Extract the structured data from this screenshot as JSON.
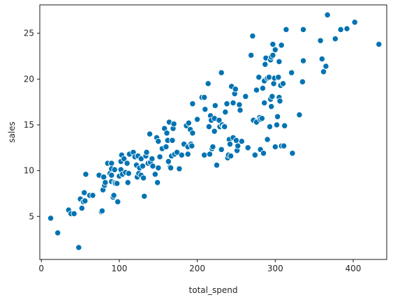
{
  "chart_data": {
    "type": "scatter",
    "title": "",
    "xlabel": "total_spend",
    "ylabel": "sales",
    "xlim": [
      -2,
      443
    ],
    "ylim": [
      0.3,
      28.1
    ],
    "xticks": [
      0,
      100,
      200,
      300,
      400
    ],
    "yticks": [
      5,
      10,
      15,
      20,
      25
    ],
    "grid": false,
    "marker_color": "#0173b2",
    "marker_edge_color": "#ffffff",
    "points": [
      [
        12,
        4.8
      ],
      [
        21,
        3.2
      ],
      [
        35,
        5.7
      ],
      [
        38,
        5.3
      ],
      [
        42,
        5.3
      ],
      [
        48,
        1.6
      ],
      [
        50,
        6.9
      ],
      [
        52,
        5.9
      ],
      [
        54,
        6.6
      ],
      [
        55,
        7.6
      ],
      [
        56,
        6.7
      ],
      [
        57,
        9.6
      ],
      [
        62,
        7.3
      ],
      [
        66,
        7.3
      ],
      [
        74,
        9.5
      ],
      [
        77,
        5.5
      ],
      [
        78,
        5.6
      ],
      [
        79,
        7.9
      ],
      [
        80,
        9.3
      ],
      [
        81,
        8.4
      ],
      [
        82,
        8.7
      ],
      [
        85,
        10.8
      ],
      [
        88,
        9.7
      ],
      [
        90,
        10.8
      ],
      [
        90,
        9.5
      ],
      [
        90,
        10.2
      ],
      [
        90,
        8.8
      ],
      [
        92,
        7.1
      ],
      [
        93,
        7.3
      ],
      [
        94,
        10.1
      ],
      [
        94,
        8.7
      ],
      [
        95,
        8.6
      ],
      [
        97,
        8.6
      ],
      [
        98,
        6.6
      ],
      [
        100,
        9.4
      ],
      [
        102,
        11.0
      ],
      [
        102,
        10.1
      ],
      [
        103,
        11.7
      ],
      [
        104,
        9.6
      ],
      [
        106,
        11.3
      ],
      [
        108,
        9.8
      ],
      [
        110,
        10.8
      ],
      [
        111,
        8.7
      ],
      [
        112,
        9.7
      ],
      [
        113,
        11.8
      ],
      [
        118,
        12.0
      ],
      [
        120,
        11.5
      ],
      [
        122,
        10.6
      ],
      [
        123,
        9.3
      ],
      [
        124,
        11.6
      ],
      [
        125,
        9.7
      ],
      [
        126,
        10.3
      ],
      [
        128,
        11.3
      ],
      [
        128,
        9.5
      ],
      [
        130,
        10.5
      ],
      [
        131,
        9.2
      ],
      [
        132,
        7.2
      ],
      [
        134,
        11.6
      ],
      [
        135,
        12.0
      ],
      [
        137,
        10.8
      ],
      [
        139,
        14.0
      ],
      [
        140,
        10.9
      ],
      [
        142,
        11.3
      ],
      [
        143,
        10.5
      ],
      [
        146,
        9.6
      ],
      [
        148,
        13.6
      ],
      [
        149,
        8.7
      ],
      [
        150,
        10.3
      ],
      [
        150,
        13.2
      ],
      [
        152,
        11.5
      ],
      [
        155,
        12.4
      ],
      [
        158,
        14.6
      ],
      [
        160,
        12.6
      ],
      [
        161,
        14.1
      ],
      [
        162,
        13.3
      ],
      [
        163,
        11.0
      ],
      [
        164,
        15.3
      ],
      [
        165,
        10.4
      ],
      [
        166,
        10.3
      ],
      [
        167,
        11.6
      ],
      [
        168,
        13.3
      ],
      [
        169,
        14.6
      ],
      [
        170,
        15.1
      ],
      [
        171,
        11.8
      ],
      [
        174,
        12.0
      ],
      [
        177,
        10.2
      ],
      [
        180,
        11.7
      ],
      [
        183,
        12.9
      ],
      [
        186,
        14.9
      ],
      [
        188,
        12.6
      ],
      [
        188,
        11.8
      ],
      [
        189,
        15.2
      ],
      [
        191,
        14.5
      ],
      [
        192,
        12.9
      ],
      [
        193,
        12.7
      ],
      [
        194,
        14.1
      ],
      [
        194,
        17.3
      ],
      [
        200,
        15.6
      ],
      [
        206,
        18.0
      ],
      [
        209,
        11.7
      ],
      [
        209,
        18.0
      ],
      [
        210,
        16.7
      ],
      [
        214,
        19.5
      ],
      [
        215,
        14.8
      ],
      [
        216,
        11.8
      ],
      [
        217,
        16.0
      ],
      [
        218,
        15.5
      ],
      [
        219,
        12.4
      ],
      [
        220,
        12.6
      ],
      [
        222,
        14.3
      ],
      [
        222,
        15.7
      ],
      [
        223,
        17.1
      ],
      [
        225,
        10.6
      ],
      [
        228,
        15.5
      ],
      [
        229,
        14.8
      ],
      [
        231,
        20.7
      ],
      [
        231,
        12.3
      ],
      [
        232,
        15.0
      ],
      [
        234,
        14.8
      ],
      [
        235,
        14.8
      ],
      [
        236,
        16.4
      ],
      [
        238,
        17.3
      ],
      [
        239,
        11.4
      ],
      [
        240,
        11.7
      ],
      [
        241,
        13.4
      ],
      [
        242,
        12.9
      ],
      [
        243,
        11.6
      ],
      [
        244,
        19.2
      ],
      [
        246,
        17.4
      ],
      [
        246,
        13.6
      ],
      [
        248,
        18.4
      ],
      [
        249,
        18.9
      ],
      [
        250,
        13.3
      ],
      [
        251,
        12.2
      ],
      [
        252,
        12.7
      ],
      [
        254,
        17.2
      ],
      [
        255,
        16.6
      ],
      [
        257,
        13.2
      ],
      [
        262,
        18.1
      ],
      [
        265,
        12.5
      ],
      [
        269,
        22.6
      ],
      [
        271,
        24.7
      ],
      [
        272,
        15.5
      ],
      [
        274,
        11.7
      ],
      [
        276,
        15.3
      ],
      [
        276,
        18.8
      ],
      [
        279,
        20.2
      ],
      [
        280,
        15.8
      ],
      [
        281,
        12.3
      ],
      [
        281,
        15.6
      ],
      [
        283,
        15.7
      ],
      [
        284,
        19.0
      ],
      [
        285,
        11.9
      ],
      [
        286,
        17.4
      ],
      [
        286,
        19.8
      ],
      [
        287,
        21.6
      ],
      [
        288,
        22.3
      ],
      [
        290,
        13.4
      ],
      [
        290,
        20.1
      ],
      [
        292,
        20.2
      ],
      [
        293,
        14.8
      ],
      [
        294,
        17.8
      ],
      [
        294,
        22.1
      ],
      [
        295,
        17.0
      ],
      [
        295,
        22.4
      ],
      [
        296,
        18.1
      ],
      [
        297,
        22.6
      ],
      [
        297,
        23.8
      ],
      [
        298,
        19.5
      ],
      [
        299,
        20.1
      ],
      [
        300,
        12.6
      ],
      [
        300,
        23.2
      ],
      [
        302,
        15.0
      ],
      [
        303,
        15.9
      ],
      [
        304,
        20.2
      ],
      [
        305,
        18.0
      ],
      [
        305,
        21.9
      ],
      [
        306,
        17.6
      ],
      [
        307,
        19.3
      ],
      [
        308,
        12.7
      ],
      [
        308,
        23.7
      ],
      [
        310,
        19.5
      ],
      [
        311,
        12.7
      ],
      [
        312,
        14.9
      ],
      [
        314,
        25.4
      ],
      [
        321,
        20.7
      ],
      [
        322,
        11.9
      ],
      [
        331,
        16.1
      ],
      [
        335,
        19.7
      ],
      [
        336,
        22.0
      ],
      [
        336,
        25.4
      ],
      [
        358,
        24.2
      ],
      [
        360,
        22.2
      ],
      [
        362,
        20.8
      ],
      [
        365,
        21.4
      ],
      [
        367,
        27.0
      ],
      [
        377,
        24.4
      ],
      [
        384,
        25.4
      ],
      [
        392,
        25.5
      ],
      [
        402,
        26.2
      ],
      [
        433,
        23.8
      ]
    ]
  }
}
